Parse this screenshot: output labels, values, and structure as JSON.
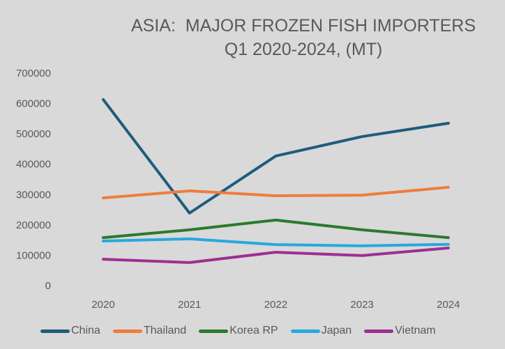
{
  "chart_data": {
    "type": "line",
    "title": "ASIA:  MAJOR FROZEN FISH IMPORTERS",
    "subtitle": "Q1 2020-2024, (MT)",
    "xlabel": "",
    "ylabel": "",
    "categories": [
      "2020",
      "2021",
      "2022",
      "2023",
      "2024"
    ],
    "ylim": [
      0,
      700000
    ],
    "yticks": [
      0,
      100000,
      200000,
      300000,
      400000,
      500000,
      600000,
      700000
    ],
    "grid": false,
    "legend": "bottom",
    "series": [
      {
        "name": "China",
        "color": "#1f5c7c",
        "values": [
          613000,
          239000,
          427000,
          491000,
          535000
        ]
      },
      {
        "name": "Thailand",
        "color": "#ee7d3b",
        "values": [
          289000,
          312000,
          296000,
          298000,
          324000
        ]
      },
      {
        "name": "Korea RP",
        "color": "#2a7a2e",
        "values": [
          158000,
          184000,
          216000,
          184000,
          158000
        ]
      },
      {
        "name": "Japan",
        "color": "#27a9dd",
        "values": [
          147000,
          154000,
          135000,
          131000,
          136000
        ]
      },
      {
        "name": "Vietnam",
        "color": "#9c2f92",
        "values": [
          87000,
          76000,
          110000,
          99000,
          124000
        ]
      }
    ]
  }
}
